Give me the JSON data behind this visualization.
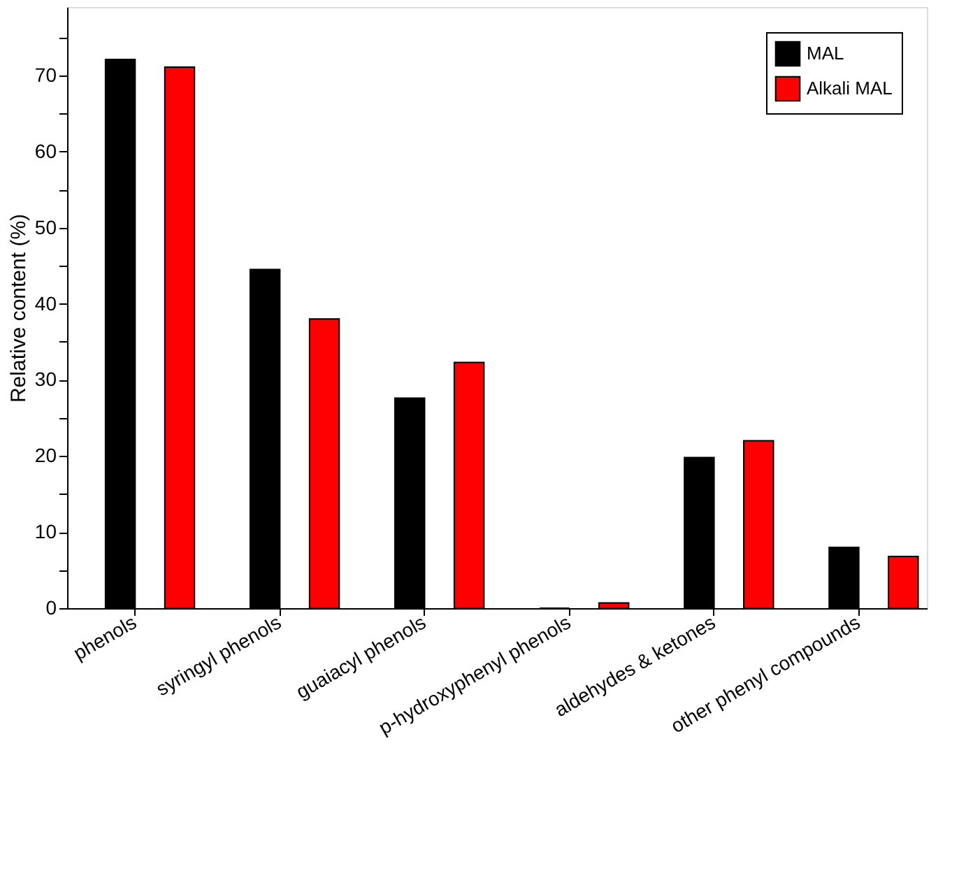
{
  "chart_data": {
    "type": "bar",
    "ylabel": "Relative content (%)",
    "categories": [
      "phenols",
      "syringyl phenols",
      "guaiacyl phenols",
      "p-hydroxyphenyl phenols",
      "aldehydes & ketones",
      "other phenyl compounds"
    ],
    "series": [
      {
        "name": "MAL",
        "color": "#000000",
        "values": [
          72.1,
          44.5,
          27.6,
          0,
          19.8,
          8.0
        ]
      },
      {
        "name": "Alkali MAL",
        "color": "#ff0000",
        "values": [
          71.1,
          38.0,
          32.3,
          0.7,
          22.0,
          6.8
        ]
      }
    ],
    "ylim": [
      0,
      79
    ],
    "yticks": [
      0,
      {
        "value": 5,
        "label": null
      },
      10,
      {
        "value": 15,
        "label": null
      },
      20,
      {
        "value": 25,
        "label": null
      },
      30,
      {
        "value": 35,
        "label": null
      },
      40,
      {
        "value": 45,
        "label": null
      },
      50,
      {
        "value": 55,
        "label": null
      },
      60,
      {
        "value": 65,
        "label": null
      },
      70,
      {
        "value": 75,
        "label": null
      }
    ],
    "grid": false,
    "legend": "top right"
  }
}
